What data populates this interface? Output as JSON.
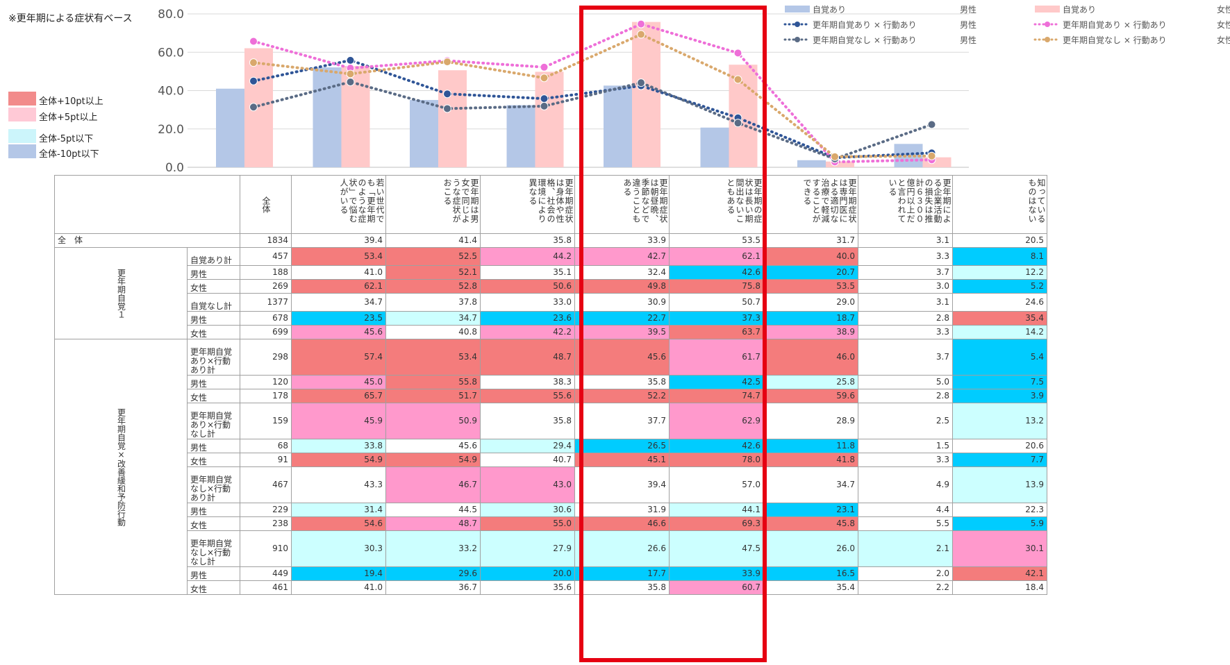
{
  "note": "※更年期による症状有ベース",
  "legend_left": [
    {
      "label": "全体+10pt以上",
      "color": "#f28b8b"
    },
    {
      "label": "全体+5pt以上",
      "color": "#ffc9d6"
    },
    {
      "label": "全体-5pt以下",
      "color": "#ccf5fb"
    },
    {
      "label": "全体-10pt以下",
      "color": "#b4c7e7"
    }
  ],
  "cell_colors": {
    "r": "#f47c7c",
    "p": "#ff99cc",
    "c": "#ccffff",
    "b": "#00ccff",
    "w": "#ffffff"
  },
  "chart_data": {
    "type": "bar+line",
    "ylim": [
      0,
      80
    ],
    "yticks": [
      "80.0",
      "60.0",
      "40.0",
      "20.0",
      "0.0"
    ],
    "categories": [
      "若い世代でも「更年期のような症状」で悩む人がいる",
      "更年期は男女で同じような症状がおこる",
      "更年期症状は身体や性格、社会の環境により異なる",
      "更年期症状は朝昼晩、季節などで違うこともある",
      "更年期の症状は長い期間出ないこともある",
      "更年期症状は専門医による適切な治療で軽減することができる",
      "更年期による企業活動の損失は推計６３００億円以上だと言われている",
      "知っているものはない"
    ],
    "series": [
      {
        "name": "自覚あり　男性",
        "type": "bar",
        "color": "#b4c7e7",
        "values": [
          41.0,
          52.1,
          35.1,
          32.4,
          42.6,
          20.7,
          3.7,
          12.2
        ]
      },
      {
        "name": "自覚あり　女性",
        "type": "bar",
        "color": "#ffc9c9",
        "values": [
          62.1,
          52.8,
          50.6,
          49.8,
          75.8,
          53.5,
          3.0,
          5.2
        ]
      },
      {
        "name": "更年期自覚あり×行動あり　男性",
        "type": "line",
        "color": "#2f5597",
        "values": [
          45.0,
          55.8,
          38.3,
          35.8,
          42.5,
          25.8,
          5.0,
          7.5
        ]
      },
      {
        "name": "更年期自覚あり×行動あり　女性",
        "type": "line",
        "color": "#ee6fd8",
        "values": [
          65.7,
          51.7,
          55.6,
          52.2,
          74.7,
          59.6,
          2.8,
          3.9
        ]
      },
      {
        "name": "更年期自覚なし×行動あり　男性",
        "type": "line",
        "color": "#5a6b85",
        "values": [
          31.4,
          44.5,
          30.6,
          31.9,
          44.1,
          23.1,
          4.4,
          22.3
        ]
      },
      {
        "name": "更年期自覚なし×行動あり　女性",
        "type": "line",
        "color": "#d9a86c",
        "values": [
          54.6,
          48.7,
          55.0,
          46.6,
          69.3,
          45.8,
          5.5,
          5.9
        ]
      }
    ],
    "legend": [
      {
        "label": "自覚あり",
        "gender": "男性",
        "kind": "bar",
        "color": "#b4c7e7"
      },
      {
        "label": "自覚あり",
        "gender": "女性",
        "kind": "bar",
        "color": "#ffc9c9"
      },
      {
        "label": "更年期自覚あり × 行動あり",
        "gender": "男性",
        "kind": "line",
        "color": "#2f5597"
      },
      {
        "label": "更年期自覚あり × 行動あり",
        "gender": "女性",
        "kind": "line",
        "color": "#ee6fd8"
      },
      {
        "label": "更年期自覚なし × 行動あり",
        "gender": "男性",
        "kind": "line",
        "color": "#5a6b85"
      },
      {
        "label": "更年期自覚なし × 行動あり",
        "gender": "女性",
        "kind": "line",
        "color": "#d9a86c"
      }
    ]
  },
  "table": {
    "total_header": "全体",
    "col_headers": [
      "若い世代でも「更年期のような症状」で悩む人がいる",
      "更年期は男女で同じような症状がおこる",
      "更年期症状は身体や性格、社会の環境により異なる",
      "更年期症状は朝昼晩、季節などで違うこともある",
      "更年期の症状は長い期間出ないこともある",
      "更年期症状は専門医による適切な治療で軽減することができる",
      "更年期による企業活動の損失は推計６３００億円以上だと言われている",
      "知っているものはない"
    ],
    "total_row": {
      "label": "全　体",
      "n": "1834",
      "values": [
        "39.4",
        "41.4",
        "35.8",
        "33.9",
        "53.5",
        "31.7",
        "3.1",
        "20.5"
      ]
    },
    "groups": [
      {
        "label": "更年期自覚１",
        "rows": [
          {
            "label": "自覚あり計",
            "n": "457",
            "values": [
              "53.4",
              "52.5",
              "44.2",
              "42.7",
              "62.1",
              "40.0",
              "3.3",
              "8.1"
            ],
            "colors": "rrppprwb"
          },
          {
            "label": "男性",
            "n": "188",
            "values": [
              "41.0",
              "52.1",
              "35.1",
              "32.4",
              "42.6",
              "20.7",
              "3.7",
              "12.2"
            ],
            "colors": "wrwwbbwc"
          },
          {
            "label": "女性",
            "n": "269",
            "values": [
              "62.1",
              "52.8",
              "50.6",
              "49.8",
              "75.8",
              "53.5",
              "3.0",
              "5.2"
            ],
            "colors": "rrrrrrwb"
          },
          {
            "label": "自覚なし計",
            "n": "1377",
            "values": [
              "34.7",
              "37.8",
              "33.0",
              "30.9",
              "50.7",
              "29.0",
              "3.1",
              "24.6"
            ],
            "colors": "wwwwwwww"
          },
          {
            "label": "男性",
            "n": "678",
            "values": [
              "23.5",
              "34.7",
              "23.6",
              "22.7",
              "37.3",
              "18.7",
              "2.8",
              "35.4"
            ],
            "colors": "bcbbbbwr"
          },
          {
            "label": "女性",
            "n": "699",
            "values": [
              "45.6",
              "40.8",
              "42.2",
              "39.5",
              "63.7",
              "38.9",
              "3.3",
              "14.2"
            ],
            "colors": "pwpprpwc"
          }
        ]
      },
      {
        "label": "更年期自覚×改善緩和予防行動",
        "rows": [
          {
            "label": "更年期自覚あり×行動あり計",
            "n": "298",
            "values": [
              "57.4",
              "53.4",
              "48.7",
              "45.6",
              "61.7",
              "46.0",
              "3.7",
              "5.4"
            ],
            "colors": "rrrrprwb"
          },
          {
            "label": "男性",
            "n": "120",
            "values": [
              "45.0",
              "55.8",
              "38.3",
              "35.8",
              "42.5",
              "25.8",
              "5.0",
              "7.5"
            ],
            "colors": "prwwbcwb"
          },
          {
            "label": "女性",
            "n": "178",
            "values": [
              "65.7",
              "51.7",
              "55.6",
              "52.2",
              "74.7",
              "59.6",
              "2.8",
              "3.9"
            ],
            "colors": "rrrrrrwb"
          },
          {
            "label": "更年期自覚あり×行動なし計",
            "n": "159",
            "values": [
              "45.9",
              "50.9",
              "35.8",
              "37.7",
              "62.9",
              "28.9",
              "2.5",
              "13.2"
            ],
            "colors": "ppwwpwwc"
          },
          {
            "label": "男性",
            "n": "68",
            "values": [
              "33.8",
              "45.6",
              "29.4",
              "26.5",
              "42.6",
              "11.8",
              "1.5",
              "20.6"
            ],
            "colors": "cwcbbbww"
          },
          {
            "label": "女性",
            "n": "91",
            "values": [
              "54.9",
              "54.9",
              "40.7",
              "45.1",
              "78.0",
              "41.8",
              "3.3",
              "7.7"
            ],
            "colors": "rrwrrrwb"
          },
          {
            "label": "更年期自覚なし×行動あり計",
            "n": "467",
            "values": [
              "43.3",
              "46.7",
              "43.0",
              "39.4",
              "57.0",
              "34.7",
              "4.9",
              "13.9"
            ],
            "colors": "wppwwwwc"
          },
          {
            "label": "男性",
            "n": "229",
            "values": [
              "31.4",
              "44.5",
              "30.6",
              "31.9",
              "44.1",
              "23.1",
              "4.4",
              "22.3"
            ],
            "colors": "cwcwcbww"
          },
          {
            "label": "女性",
            "n": "238",
            "values": [
              "54.6",
              "48.7",
              "55.0",
              "46.6",
              "69.3",
              "45.8",
              "5.5",
              "5.9"
            ],
            "colors": "rprrrrwb"
          },
          {
            "label": "更年期自覚なし×行動なし計",
            "n": "910",
            "values": [
              "30.3",
              "33.2",
              "27.9",
              "26.6",
              "47.5",
              "26.0",
              "2.1",
              "30.1"
            ],
            "colors": "cccccccp"
          },
          {
            "label": "男性",
            "n": "449",
            "values": [
              "19.4",
              "29.6",
              "20.0",
              "17.7",
              "33.9",
              "16.5",
              "2.0",
              "42.1"
            ],
            "colors": "bbbbbbwr"
          },
          {
            "label": "女性",
            "n": "461",
            "values": [
              "41.0",
              "36.7",
              "35.6",
              "35.8",
              "60.7",
              "35.4",
              "2.2",
              "18.4"
            ],
            "colors": "wwwwpwww"
          }
        ]
      }
    ]
  }
}
